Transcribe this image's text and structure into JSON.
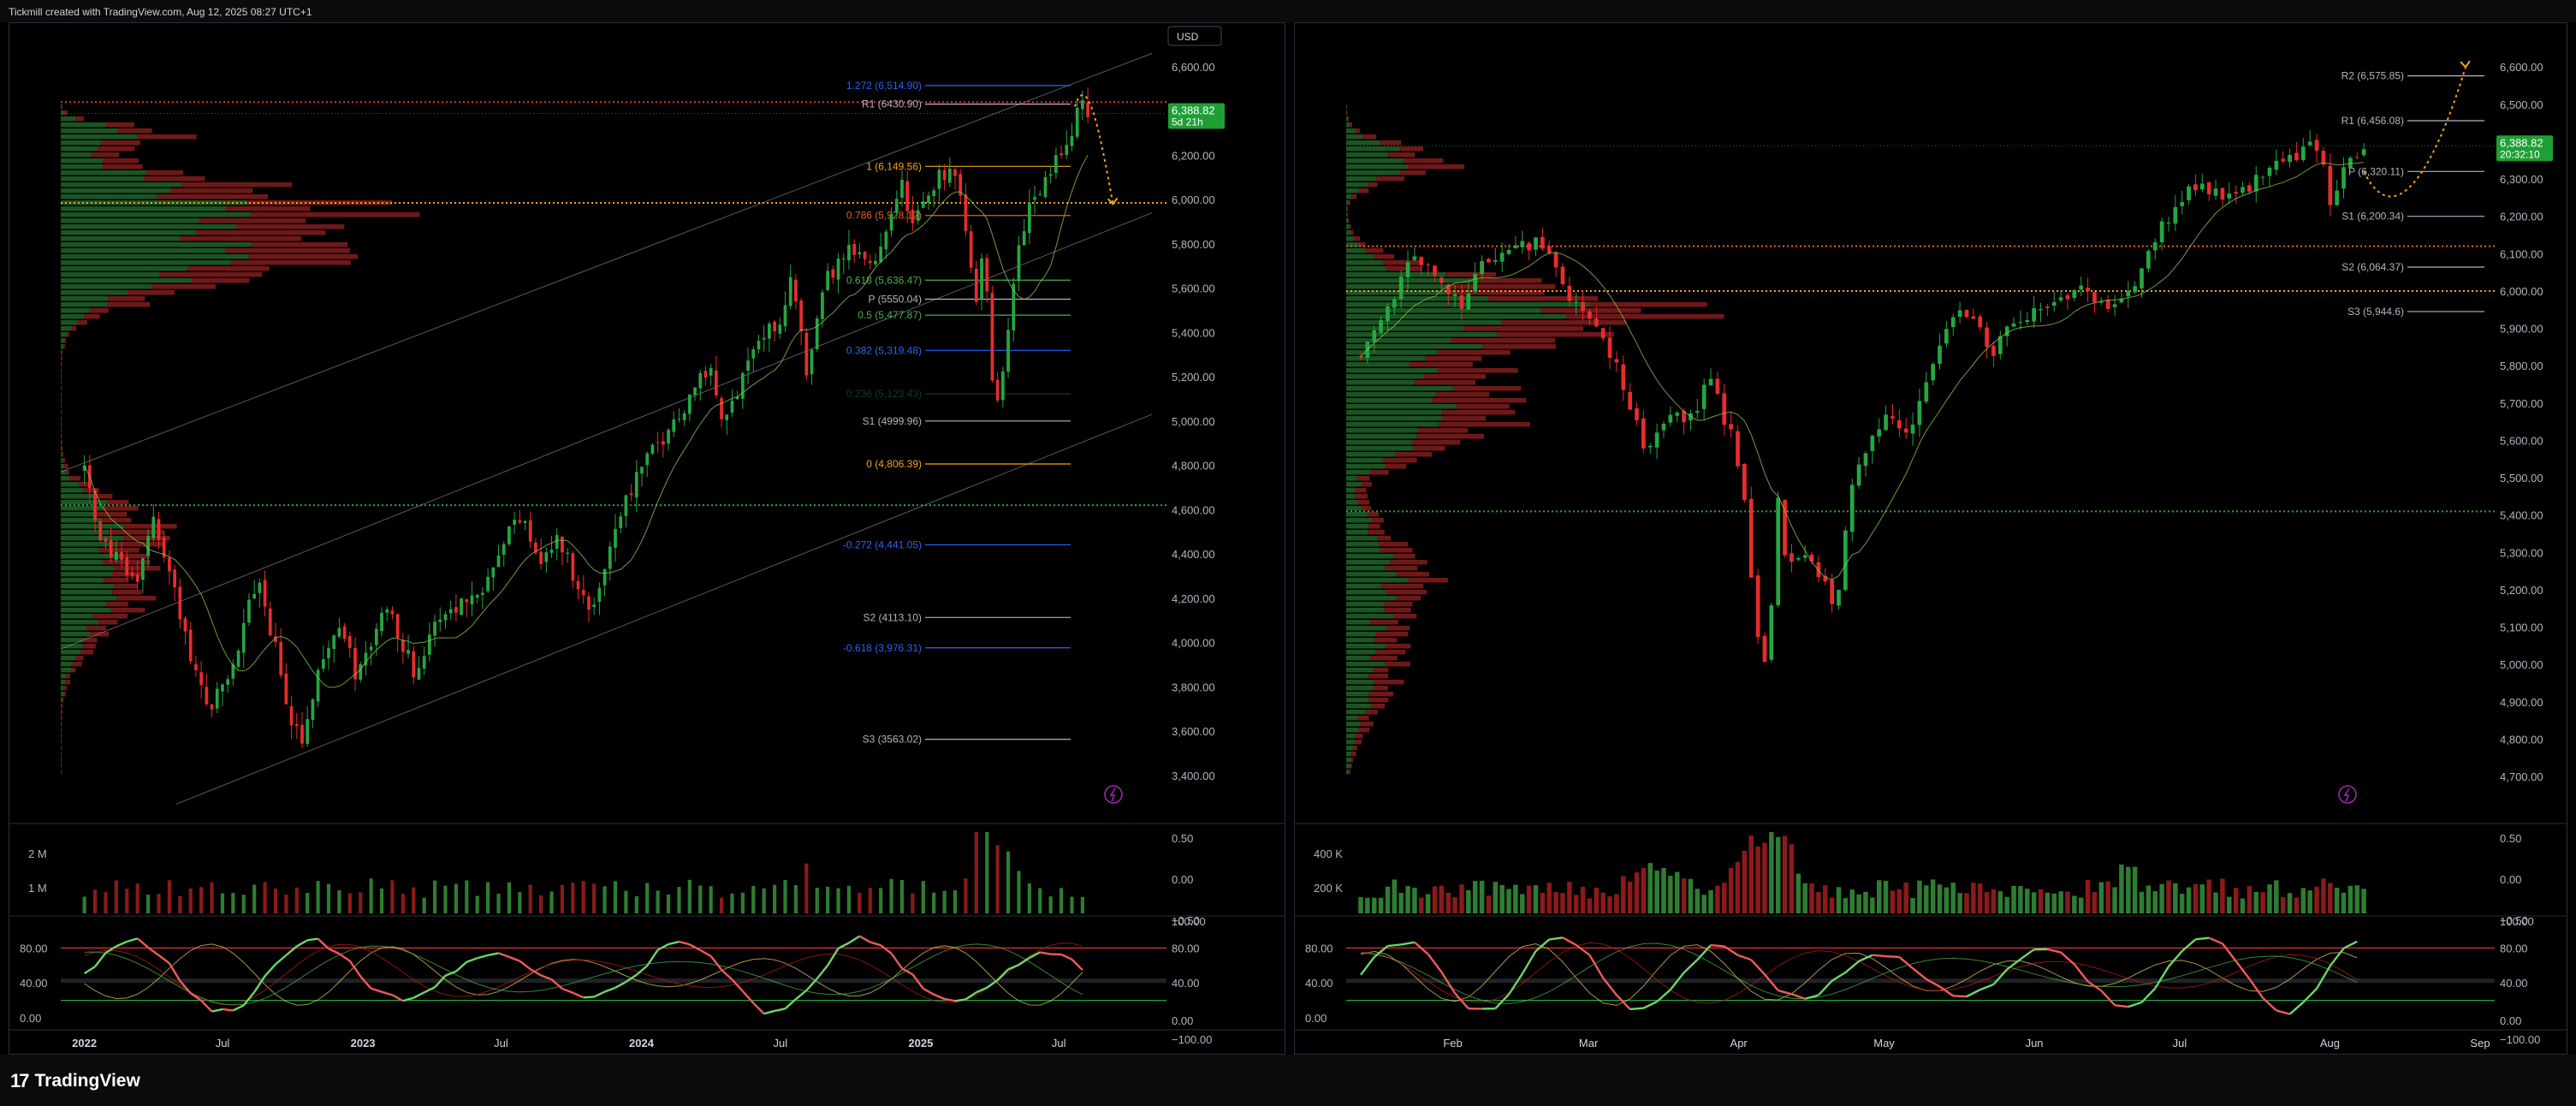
{
  "header": {
    "caption": "Tickmill created with TradingView.com, Aug 12, 2025 08:27 UTC+1"
  },
  "footer": {
    "logo_mark": "17",
    "logo_text": "TradingView"
  },
  "colors": {
    "up": "#26a641",
    "down": "#e82c2c",
    "vol_up": "#2e7d32",
    "vol_down": "#8b1a1a",
    "orange": "#f7a21b",
    "blue": "#2962ff",
    "price_badge": "#1f9e36"
  },
  "chart_data": [
    {
      "type": "candlestick",
      "panel": "left",
      "currency_label": "USD",
      "price_axis": {
        "ticks": [
          "6,600.00",
          "6,400.00",
          "6,200.00",
          "6,000.00",
          "5,800.00",
          "5,600.00",
          "5,400.00",
          "5,200.00",
          "5,000.00",
          "4,800.00",
          "4,600.00",
          "4,400.00",
          "4,200.00",
          "4,000.00",
          "3,800.00",
          "3,600.00",
          "3,400.00"
        ],
        "range": [
          3260,
          6700
        ]
      },
      "time_axis": {
        "ticks": [
          "2022",
          "Jul",
          "2023",
          "Jul",
          "2024",
          "Jul",
          "2025",
          "Jul"
        ],
        "range": [
          "2021-12-01",
          "2025-10-31"
        ]
      },
      "last_price": {
        "value": "6,388.82",
        "countdown": "5d 21h"
      },
      "price_path": [
        [
          "2022-01-01",
          4770
        ],
        [
          "2022-01-20",
          4500
        ],
        [
          "2022-02-15",
          4350
        ],
        [
          "2022-03-10",
          4250
        ],
        [
          "2022-03-30",
          4580
        ],
        [
          "2022-04-20",
          4350
        ],
        [
          "2022-05-20",
          3920
        ],
        [
          "2022-06-15",
          3700
        ],
        [
          "2022-07-10",
          3850
        ],
        [
          "2022-08-15",
          4280
        ],
        [
          "2022-09-10",
          3950
        ],
        [
          "2022-09-30",
          3600
        ],
        [
          "2022-10-15",
          3580
        ],
        [
          "2022-11-10",
          3950
        ],
        [
          "2022-12-01",
          4070
        ],
        [
          "2022-12-25",
          3840
        ],
        [
          "2023-02-02",
          4180
        ],
        [
          "2023-03-10",
          3860
        ],
        [
          "2023-04-15",
          4140
        ],
        [
          "2023-06-01",
          4220
        ],
        [
          "2023-06-30",
          4450
        ],
        [
          "2023-07-30",
          4590
        ],
        [
          "2023-08-20",
          4370
        ],
        [
          "2023-09-15",
          4470
        ],
        [
          "2023-10-27",
          4120
        ],
        [
          "2023-11-30",
          4560
        ],
        [
          "2023-12-29",
          4770
        ],
        [
          "2024-02-15",
          5010
        ],
        [
          "2024-03-28",
          5250
        ],
        [
          "2024-04-19",
          4970
        ],
        [
          "2024-05-20",
          5300
        ],
        [
          "2024-06-30",
          5460
        ],
        [
          "2024-07-16",
          5660
        ],
        [
          "2024-08-05",
          5180
        ],
        [
          "2024-08-30",
          5640
        ],
        [
          "2024-09-30",
          5760
        ],
        [
          "2024-10-31",
          5700
        ],
        [
          "2024-12-06",
          6090
        ],
        [
          "2024-12-20",
          5870
        ],
        [
          "2025-01-23",
          6110
        ],
        [
          "2025-02-19",
          6140
        ],
        [
          "2025-03-13",
          5520
        ],
        [
          "2025-03-25",
          5780
        ],
        [
          "2025-04-08",
          4980
        ],
        [
          "2025-04-30",
          5560
        ],
        [
          "2025-05-19",
          5950
        ],
        [
          "2025-06-10",
          6040
        ],
        [
          "2025-06-30",
          6200
        ],
        [
          "2025-07-15",
          6300
        ],
        [
          "2025-07-28",
          6420
        ],
        [
          "2025-08-08",
          6388
        ]
      ],
      "volume_axis": {
        "left_ticks": [
          "2 M",
          "1 M"
        ],
        "right_ticks": [
          "0.50",
          "0.00",
          "−0.50"
        ]
      },
      "oscillator_axis": {
        "left_ticks": [
          "80.00",
          "40.00",
          "0.00"
        ],
        "right_ticks": [
          "100.00",
          "80.00",
          "40.00",
          "0.00",
          "−100.00"
        ]
      },
      "levels": [
        {
          "label": "1.272 (6,514.90)",
          "value": 6515,
          "color": "#2962ff"
        },
        {
          "label": "R1 (6430.90)",
          "value": 6431,
          "color": "#b2b5be"
        },
        {
          "label": "1 (6,149.56)",
          "value": 6150,
          "color": "#f7a21b"
        },
        {
          "label": "0.786 (5,928.12)",
          "value": 5928,
          "color": "#e85d24"
        },
        {
          "label": "0.618 (5,636.47)",
          "value": 5636,
          "color": "#4caf50"
        },
        {
          "label": "P (5550.04)",
          "value": 5550,
          "color": "#b2b5be"
        },
        {
          "label": "0.5 (5,477.87)",
          "value": 5478,
          "color": "#4caf50"
        },
        {
          "label": "0.382 (5,319.48)",
          "value": 5319,
          "color": "#2962ff"
        },
        {
          "label": "0.236 (5,123.43)",
          "value": 5123,
          "color": "#0f3d2e"
        },
        {
          "label": "S1 (4999.96)",
          "value": 5000,
          "color": "#b2b5be"
        },
        {
          "label": "0 (4,806.39)",
          "value": 4806,
          "color": "#f7a21b"
        },
        {
          "label": "-0.272 (4,441.05)",
          "value": 4441,
          "color": "#2962ff"
        },
        {
          "label": "S2 (4113.10)",
          "value": 4113,
          "color": "#b2b5be"
        },
        {
          "label": "-0.618 (3,976.31)",
          "value": 3976,
          "color": "#2962ff"
        },
        {
          "label": "S3 (3563.02)",
          "value": 3563,
          "color": "#b2b5be"
        }
      ],
      "horizontal_lines": [
        {
          "value": 6440,
          "color": "#e82c2c",
          "style": "dotted"
        },
        {
          "value": 5985,
          "color": "#f7a21b",
          "style": "dotted"
        },
        {
          "value": 4620,
          "color": "#26a641",
          "style": "dotted"
        }
      ],
      "channel": {
        "top": [
          [
            "2021-12-01",
            4770
          ],
          [
            "2025-10-31",
            6660
          ]
        ],
        "mid": [
          [
            "2021-12-01",
            3970
          ],
          [
            "2025-10-31",
            5940
          ]
        ],
        "bottom": [
          [
            "2022-05-01",
            3270
          ],
          [
            "2025-10-31",
            5030
          ]
        ]
      },
      "projection": [
        [
          "2025-07-22",
          6420
        ],
        [
          "2025-08-08",
          6600
        ],
        [
          "2025-08-25",
          6280
        ],
        [
          "2025-09-10",
          5980
        ]
      ]
    },
    {
      "type": "candlestick",
      "panel": "right",
      "price_axis": {
        "ticks": [
          "6,600.00",
          "6,500.00",
          "6,400.00",
          "6,300.00",
          "6,200.00",
          "6,100.00",
          "6,000.00",
          "5,900.00",
          "5,800.00",
          "5,700.00",
          "5,600.00",
          "5,500.00",
          "5,400.00",
          "5,300.00",
          "5,200.00",
          "5,100.00",
          "5,000.00",
          "4,900.00",
          "4,800.00",
          "4,700.00"
        ],
        "range": [
          4620,
          6660
        ]
      },
      "time_axis": {
        "ticks": [
          "Feb",
          "Mar",
          "Apr",
          "May",
          "Jun",
          "Jul",
          "Aug",
          "Sep"
        ],
        "range": [
          "2025-01-10",
          "2025-09-01"
        ]
      },
      "last_price": {
        "value": "6,388.82",
        "countdown": "20:32:10"
      },
      "price_path": [
        [
          "2025-01-13",
          5830
        ],
        [
          "2025-01-20",
          6000
        ],
        [
          "2025-01-24",
          6110
        ],
        [
          "2025-01-28",
          6030
        ],
        [
          "2025-02-03",
          5960
        ],
        [
          "2025-02-07",
          6070
        ],
        [
          "2025-02-14",
          6110
        ],
        [
          "2025-02-19",
          6140
        ],
        [
          "2025-02-24",
          6010
        ],
        [
          "2025-03-03",
          5890
        ],
        [
          "2025-03-07",
          5800
        ],
        [
          "2025-03-13",
          5560
        ],
        [
          "2025-03-17",
          5680
        ],
        [
          "2025-03-21",
          5640
        ],
        [
          "2025-03-26",
          5760
        ],
        [
          "2025-03-31",
          5590
        ],
        [
          "2025-04-03",
          5400
        ],
        [
          "2025-04-04",
          5090
        ],
        [
          "2025-04-07",
          4980
        ],
        [
          "2025-04-09",
          5460
        ],
        [
          "2025-04-10",
          5270
        ],
        [
          "2025-04-16",
          5290
        ],
        [
          "2025-04-21",
          5160
        ],
        [
          "2025-04-25",
          5520
        ],
        [
          "2025-05-02",
          5690
        ],
        [
          "2025-05-06",
          5610
        ],
        [
          "2025-05-13",
          5890
        ],
        [
          "2025-05-19",
          5960
        ],
        [
          "2025-05-23",
          5820
        ],
        [
          "2025-05-28",
          5930
        ],
        [
          "2025-06-05",
          5950
        ],
        [
          "2025-06-11",
          6030
        ],
        [
          "2025-06-13",
          5960
        ],
        [
          "2025-06-20",
          5970
        ],
        [
          "2025-06-27",
          6170
        ],
        [
          "2025-07-03",
          6280
        ],
        [
          "2025-07-11",
          6260
        ],
        [
          "2025-07-18",
          6300
        ],
        [
          "2025-07-24",
          6360
        ],
        [
          "2025-07-28",
          6390
        ],
        [
          "2025-07-31",
          6330
        ],
        [
          "2025-08-01",
          6230
        ],
        [
          "2025-08-04",
          6320
        ],
        [
          "2025-08-08",
          6388
        ]
      ],
      "volume_axis": {
        "left_ticks": [
          "400 K",
          "200 K"
        ],
        "right_ticks": [
          "0.50",
          "0.00",
          "−0.50"
        ]
      },
      "oscillator_axis": {
        "left_ticks": [
          "80.00",
          "40.00",
          "0.00"
        ],
        "right_ticks": [
          "100.00",
          "80.00",
          "40.00",
          "0.00",
          "−100.00"
        ]
      },
      "levels": [
        {
          "label": "R2 (6,575.85)",
          "value": 6576,
          "color": "#b2b5be"
        },
        {
          "label": "R1 (6,456.08)",
          "value": 6456,
          "color": "#b2b5be"
        },
        {
          "label": "P (6,320.11)",
          "value": 6320,
          "color": "#b2b5be"
        },
        {
          "label": "S1 (6,200.34)",
          "value": 6200,
          "color": "#b2b5be"
        },
        {
          "label": "S2 (6,064.37)",
          "value": 6064,
          "color": "#b2b5be"
        },
        {
          "label": "S3 (5,944.6)",
          "value": 5945,
          "color": "#b2b5be"
        }
      ],
      "horizontal_lines": [
        {
          "value": 6120,
          "color": "#e85d24",
          "style": "dotted"
        },
        {
          "value": 6000,
          "color": "#f7a21b",
          "style": "dotted"
        },
        {
          "value": 5410,
          "color": "#26a641",
          "style": "dotted"
        }
      ],
      "projection": [
        [
          "2025-08-08",
          6320
        ],
        [
          "2025-08-14",
          6160
        ],
        [
          "2025-08-22",
          6300
        ],
        [
          "2025-08-29",
          6600
        ]
      ]
    }
  ]
}
